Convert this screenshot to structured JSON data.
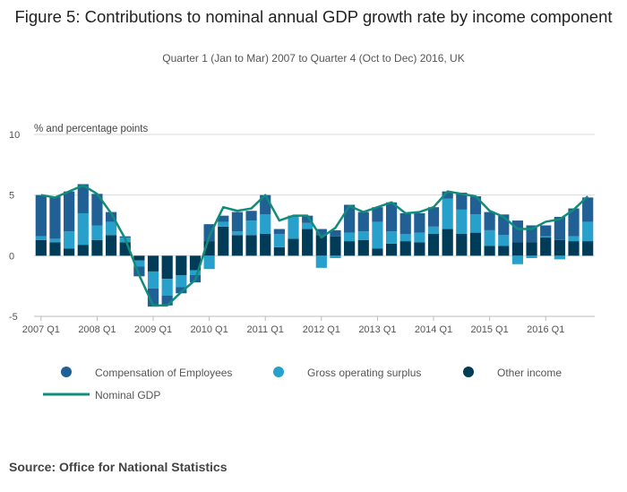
{
  "header": {
    "title": "Figure 5: Contributions to nominal annual GDP growth rate by income component",
    "subtitle": "Quarter 1 (Jan to Mar) 2007 to Quarter 4 (Oct to Dec) 2016, UK"
  },
  "footer": {
    "source": "Source: Office for National Statistics"
  },
  "chart_data": {
    "type": "bar",
    "stacked": true,
    "y_unit_label": "% and percentage points",
    "ylim": [
      -5,
      10
    ],
    "yticks": [
      "10",
      "5",
      "0",
      "-5"
    ],
    "xtick_labels": [
      "2007 Q1",
      "2008 Q1",
      "2009 Q1",
      "2010 Q1",
      "2011 Q1",
      "2012 Q1",
      "2013 Q1",
      "2014 Q1",
      "2015 Q1",
      "2016 Q1"
    ],
    "grid": true,
    "legend_position": "bottom",
    "colors": {
      "compensation": "#206095",
      "gos": "#27a0cc",
      "other": "#003c57",
      "gdp": "#118c7b"
    },
    "categories": [
      "2007 Q1",
      "2007 Q2",
      "2007 Q3",
      "2007 Q4",
      "2008 Q1",
      "2008 Q2",
      "2008 Q3",
      "2008 Q4",
      "2009 Q1",
      "2009 Q2",
      "2009 Q3",
      "2009 Q4",
      "2010 Q1",
      "2010 Q2",
      "2010 Q3",
      "2010 Q4",
      "2011 Q1",
      "2011 Q2",
      "2011 Q3",
      "2011 Q4",
      "2012 Q1",
      "2012 Q2",
      "2012 Q3",
      "2012 Q4",
      "2013 Q1",
      "2013 Q2",
      "2013 Q3",
      "2013 Q4",
      "2014 Q1",
      "2014 Q2",
      "2014 Q3",
      "2014 Q4",
      "2015 Q1",
      "2015 Q2",
      "2015 Q3",
      "2015 Q4",
      "2016 Q1",
      "2016 Q2",
      "2016 Q3",
      "2016 Q4"
    ],
    "series": [
      {
        "name": "Other income",
        "key": "other",
        "values": [
          1.3,
          1.1,
          0.6,
          0.9,
          1.3,
          1.7,
          1.1,
          -0.4,
          -1.3,
          -1.9,
          -1.6,
          -1.2,
          1.2,
          2.4,
          1.7,
          1.7,
          1.8,
          0.7,
          1.4,
          2.2,
          1.7,
          1.6,
          1.2,
          1.3,
          0.6,
          1.0,
          1.2,
          1.1,
          1.8,
          2.2,
          1.8,
          1.9,
          0.8,
          0.8,
          1.1,
          1.1,
          1.5,
          1.3,
          1.2,
          1.2
        ]
      },
      {
        "name": "Gross operating surplus",
        "key": "gos",
        "values": [
          0.3,
          0.3,
          1.4,
          2.6,
          1.2,
          1.1,
          0.4,
          -0.5,
          -1.4,
          -1.4,
          -1.0,
          -0.4,
          -1.1,
          0.4,
          0.3,
          1.2,
          1.6,
          1.1,
          1.8,
          0.5,
          -1.0,
          -0.2,
          0.7,
          0.7,
          2.2,
          1.0,
          0.6,
          0.8,
          0.6,
          2.5,
          2.0,
          1.5,
          1.3,
          0.9,
          -0.7,
          -0.2,
          0.1,
          -0.3,
          0.4,
          1.6
        ]
      },
      {
        "name": "Compensation of Employees",
        "key": "compensation",
        "values": [
          3.4,
          3.5,
          3.3,
          2.4,
          2.6,
          0.8,
          0.1,
          -0.8,
          -1.5,
          -0.8,
          -0.5,
          -0.6,
          1.4,
          0.5,
          1.6,
          0.8,
          1.6,
          0.4,
          0.1,
          0.6,
          0.5,
          0.5,
          2.3,
          1.6,
          1.2,
          2.4,
          1.7,
          1.6,
          1.6,
          0.6,
          1.4,
          1.5,
          1.5,
          1.7,
          1.8,
          1.4,
          0.9,
          1.9,
          2.3,
          2.0
        ]
      },
      {
        "name": "Nominal GDP",
        "key": "gdp",
        "type": "line",
        "values": [
          5.0,
          4.8,
          5.3,
          5.8,
          5.1,
          3.5,
          1.4,
          -1.6,
          -4.1,
          -4.1,
          -3.0,
          -2.0,
          1.6,
          4.0,
          3.7,
          3.9,
          5.0,
          2.9,
          3.3,
          3.3,
          1.5,
          2.3,
          4.1,
          3.6,
          4.0,
          4.4,
          3.5,
          3.6,
          4.0,
          5.3,
          5.1,
          4.9,
          3.7,
          3.2,
          2.2,
          2.2,
          2.8,
          3.0,
          3.8,
          4.9
        ]
      }
    ]
  }
}
